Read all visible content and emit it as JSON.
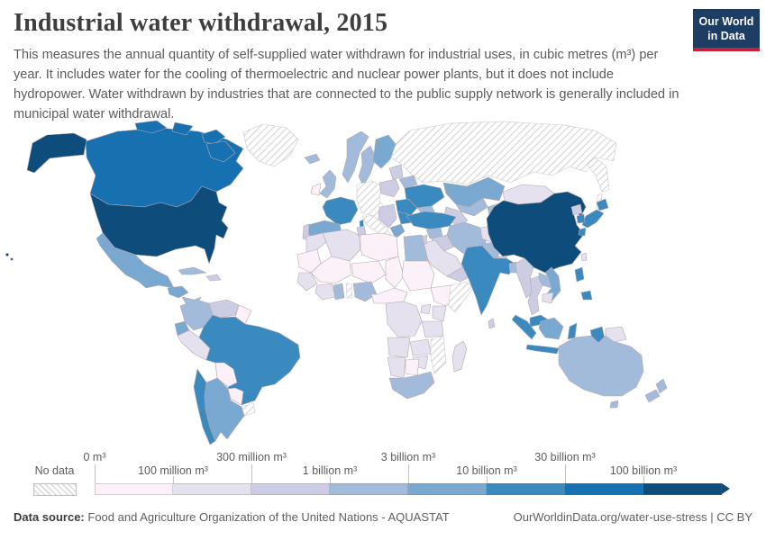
{
  "header": {
    "title": "Industrial water withdrawal, 2015",
    "subtitle": "This measures the annual quantity of self-supplied water withdrawn for industrial uses, in cubic metres (m³) per year. It includes water for the cooling of thermoelectric and nuclear power plants, but it does not include hydropower. Water withdrawn by industries that are connected to the public supply network is generally included in municipal water withdrawal.",
    "logo": {
      "line1": "Our World",
      "line2": "in Data"
    }
  },
  "colors": {
    "logo_bg": "#1d3d63",
    "logo_accent": "#c4223b",
    "map_border": "#b4a9ae",
    "nodata_border": "#c9c9c9"
  },
  "legend": {
    "tick_labels": [
      "0 m³",
      "100 million m³",
      "300 million m³",
      "1 billion m³",
      "3 billion m³",
      "10 billion m³",
      "30 billion m³",
      "100 billion m³"
    ]
  },
  "footer": {
    "source_label": "Data source:",
    "source_text": "Food and Agriculture Organization of the United Nations - AQUASTAT",
    "credit": "OurWorldinData.org/water-use-stress | CC BY"
  },
  "chart_data": {
    "type": "choropleth",
    "subtype": "world-map",
    "title": "Industrial water withdrawal, 2015",
    "unit": "cubic metres (m³) per year",
    "no_data_label": "No data",
    "legend_bins": [
      {
        "range": "0 – 100 million m³",
        "color": "#fcf1f8"
      },
      {
        "range": "100 – 300 million m³",
        "color": "#e5e1ef"
      },
      {
        "range": "300 million – 1 billion m³",
        "color": "#cccde2"
      },
      {
        "range": "1 – 3 billion m³",
        "color": "#a2bbdb"
      },
      {
        "range": "3 – 10 billion m³",
        "color": "#79a8d1"
      },
      {
        "range": "10 – 30 billion m³",
        "color": "#3b8abf"
      },
      {
        "range": "30 – 100 billion m³",
        "color": "#1771b1"
      },
      {
        "range": "100+ billion m³",
        "color": "#0e4d7b"
      }
    ],
    "countries": {
      "usa": 7,
      "canada": 6,
      "greenland": "no-data",
      "mexico": 4,
      "guatemala": 4,
      "panama": 3,
      "cuba": 3,
      "hispaniola": 2,
      "colombia": 3,
      "venezuela": 2,
      "guyanas": 0,
      "ecuador": 4,
      "peru": 1,
      "brazil": 5,
      "bolivia": 0,
      "paraguay": 0,
      "uruguay": "no-data",
      "argentina": 4,
      "chile": 5,
      "iceland": 3,
      "norway": 3,
      "sweden": 3,
      "finland": 4,
      "denmark": 4,
      "uk": 3,
      "ireland": 0,
      "france": 5,
      "corsica-sardinia": 5,
      "spain": 4,
      "portugal": 2,
      "germany-central": "no-data",
      "italy": "no-data",
      "poland": 2,
      "baltics": 2,
      "belarus": 3,
      "ukraine": 5,
      "romania": 5,
      "bulgaria": 5,
      "balkans": 2,
      "greece": 4,
      "russia": "no-data",
      "kazakhstan": 4,
      "uzbekistan": 3,
      "turkmenistan": 2,
      "kyrgyz-tajik": 3,
      "caucasus": 3,
      "turkey": 5,
      "syria": 3,
      "iraq": 2,
      "iran": 3,
      "afghanistan": 1,
      "pakistan": 3,
      "saudi-arabia": 1,
      "yemen-oman": 2,
      "jordan-israel": 2,
      "egypt": 3,
      "morocco": 1,
      "mauritania": 0,
      "algeria": 1,
      "tunisia": 2,
      "libya": 0,
      "mali": 0,
      "niger": 0,
      "chad": 0,
      "sudan": 0,
      "senegal": 1,
      "ivory-coast": 1,
      "ghana": 3,
      "benin": "no-data",
      "nigeria": 3,
      "cameroon-car": 0,
      "ethiopia": 0,
      "somalia": "no-data",
      "kenya": 1,
      "uganda": 1,
      "drc": 1,
      "tanzania": 1,
      "angola": 1,
      "zambia": 1,
      "mozambique": "no-data",
      "zimbabwe": 1,
      "namibia": 1,
      "botswana": 0,
      "south-africa": 3,
      "madagascar": 1,
      "mongolia": 1,
      "china": 7,
      "nepal": 2,
      "india": 5,
      "sri-lanka": 2,
      "bangladesh": 3,
      "myanmar": 2,
      "thailand": 2,
      "laos": 3,
      "vietnam": 4,
      "cambodia": 1,
      "malaysia": 5,
      "indonesia": 5,
      "borneo": 4,
      "philippines": 5,
      "taiwan": 1,
      "japan": 5,
      "south-korea": 5,
      "north-korea": 2,
      "png": 1,
      "australia": 3,
      "new-zealand": 3
    }
  }
}
